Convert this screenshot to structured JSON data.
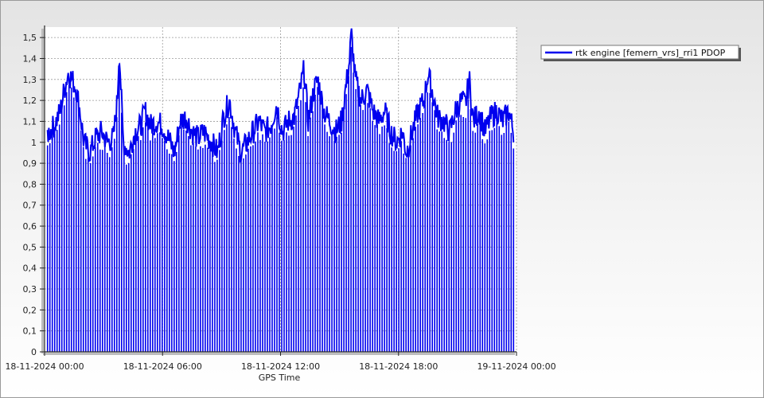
{
  "chart_data": {
    "type": "bar",
    "title": "",
    "xlabel": "GPS Time",
    "ylabel": "",
    "ylim": [
      0,
      1.55
    ],
    "y_ticks": [
      0,
      0.1,
      0.2,
      0.3,
      0.4,
      0.5,
      0.6,
      0.7,
      0.8,
      0.9,
      1,
      1.1,
      1.2,
      1.3,
      1.4,
      1.5
    ],
    "y_tick_labels": [
      "0",
      "0,1",
      "0,2",
      "0,3",
      "0,4",
      "0,5",
      "0,6",
      "0,7",
      "0,8",
      "0,9",
      "1",
      "1,1",
      "1,2",
      "1,3",
      "1,4",
      "1,5"
    ],
    "x_range_hours": [
      0,
      24
    ],
    "x_ticks": [
      {
        "hour": 0,
        "label": "18-11-2024 00:00"
      },
      {
        "hour": 6,
        "label": "18-11-2024 06:00"
      },
      {
        "hour": 12,
        "label": "18-11-2024 12:00"
      },
      {
        "hour": 18,
        "label": "18-11-2024 18:00"
      },
      {
        "hour": 24,
        "label": "19-11-2024 00:00"
      }
    ],
    "grid": true,
    "legend_position": "top-right",
    "series": [
      {
        "name": "rtk engine [femern_vrs]_rri1 PDOP",
        "color": "#0000ee",
        "x_start_hour": 0.15,
        "x_end_hour": 23.85,
        "envelope": [
          [
            0.15,
            1.04
          ],
          [
            0.5,
            1.08
          ],
          [
            0.8,
            1.15
          ],
          [
            1.0,
            1.25
          ],
          [
            1.2,
            1.33
          ],
          [
            1.4,
            1.3
          ],
          [
            1.6,
            1.26
          ],
          [
            1.8,
            1.15
          ],
          [
            2.0,
            1.0
          ],
          [
            2.3,
            0.95
          ],
          [
            2.6,
            1.02
          ],
          [
            2.9,
            1.05
          ],
          [
            3.2,
            1.0
          ],
          [
            3.5,
            1.02
          ],
          [
            3.7,
            1.2
          ],
          [
            3.8,
            1.45
          ],
          [
            4.0,
            1.0
          ],
          [
            4.3,
            0.95
          ],
          [
            4.6,
            1.05
          ],
          [
            4.9,
            1.08
          ],
          [
            5.1,
            1.15
          ],
          [
            5.4,
            1.08
          ],
          [
            5.7,
            1.1
          ],
          [
            6.0,
            1.08
          ],
          [
            6.3,
            1.02
          ],
          [
            6.6,
            0.95
          ],
          [
            6.9,
            1.1
          ],
          [
            7.2,
            1.12
          ],
          [
            7.5,
            1.05
          ],
          [
            7.8,
            1.02
          ],
          [
            8.1,
            1.05
          ],
          [
            8.5,
            1.0
          ],
          [
            8.8,
            0.95
          ],
          [
            9.1,
            1.12
          ],
          [
            9.4,
            1.2
          ],
          [
            9.7,
            1.05
          ],
          [
            10.0,
            0.95
          ],
          [
            10.3,
            1.0
          ],
          [
            10.6,
            1.05
          ],
          [
            10.9,
            1.1
          ],
          [
            11.2,
            1.05
          ],
          [
            11.5,
            1.08
          ],
          [
            11.8,
            1.18
          ],
          [
            12.1,
            1.05
          ],
          [
            12.4,
            1.1
          ],
          [
            12.7,
            1.12
          ],
          [
            13.0,
            1.25
          ],
          [
            13.2,
            1.35
          ],
          [
            13.4,
            1.1
          ],
          [
            13.7,
            1.25
          ],
          [
            13.9,
            1.3
          ],
          [
            14.2,
            1.15
          ],
          [
            14.5,
            1.1
          ],
          [
            14.8,
            1.05
          ],
          [
            15.1,
            1.1
          ],
          [
            15.3,
            1.25
          ],
          [
            15.5,
            1.38
          ],
          [
            15.6,
            1.52
          ],
          [
            15.8,
            1.3
          ],
          [
            16.1,
            1.2
          ],
          [
            16.4,
            1.25
          ],
          [
            16.7,
            1.15
          ],
          [
            17.0,
            1.1
          ],
          [
            17.3,
            1.15
          ],
          [
            17.6,
            1.05
          ],
          [
            17.9,
            1.0
          ],
          [
            18.2,
            1.05
          ],
          [
            18.4,
            0.95
          ],
          [
            18.7,
            1.05
          ],
          [
            19.0,
            1.15
          ],
          [
            19.3,
            1.2
          ],
          [
            19.5,
            1.33
          ],
          [
            19.7,
            1.25
          ],
          [
            20.0,
            1.12
          ],
          [
            20.3,
            1.1
          ],
          [
            20.6,
            1.05
          ],
          [
            20.9,
            1.15
          ],
          [
            21.2,
            1.2
          ],
          [
            21.4,
            1.18
          ],
          [
            21.6,
            1.3
          ],
          [
            21.8,
            1.1
          ],
          [
            22.1,
            1.15
          ],
          [
            22.4,
            1.05
          ],
          [
            22.7,
            1.12
          ],
          [
            23.0,
            1.15
          ],
          [
            23.3,
            1.1
          ],
          [
            23.6,
            1.15
          ],
          [
            23.85,
            1.05
          ]
        ]
      }
    ]
  }
}
